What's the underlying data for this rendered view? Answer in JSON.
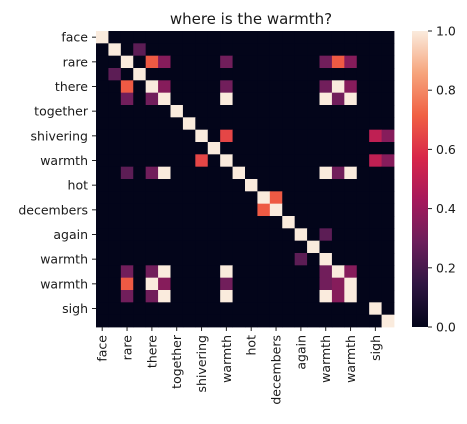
{
  "chart_data": {
    "type": "heatmap",
    "title": "where is the warmth?",
    "x_labels_shown": [
      "face",
      "rare",
      "there",
      "together",
      "shivering",
      "warmth",
      "hot",
      "decembers",
      "again",
      "warmth",
      "warmth",
      "sigh"
    ],
    "y_labels_shown": [
      "face",
      "rare",
      "there",
      "together",
      "shivering",
      "warmth",
      "hot",
      "decembers",
      "again",
      "warmth",
      "warmth",
      "sigh"
    ],
    "rows": 24,
    "cols": 24,
    "matrix": [
      [
        1,
        0,
        0,
        0,
        0,
        0,
        0,
        0,
        0,
        0,
        0,
        0,
        0,
        0,
        0,
        0,
        0,
        0,
        0,
        0,
        0,
        0,
        0,
        0
      ],
      [
        0,
        1,
        0,
        0.25,
        0,
        0,
        0,
        0,
        0,
        0,
        0,
        0,
        0,
        0,
        0,
        0,
        0,
        0,
        0,
        0,
        0,
        0,
        0,
        0
      ],
      [
        0,
        0,
        1,
        0,
        0.7,
        0.35,
        0,
        0,
        0,
        0,
        0.3,
        0,
        0,
        0,
        0,
        0,
        0,
        0,
        0.3,
        0.7,
        0.35,
        0,
        0,
        0
      ],
      [
        0,
        0.25,
        0,
        1,
        0,
        0,
        0,
        0,
        0,
        0,
        0,
        0,
        0,
        0,
        0,
        0,
        0,
        0,
        0,
        0,
        0,
        0,
        0,
        0
      ],
      [
        0,
        0,
        0.7,
        0,
        1,
        0.35,
        0,
        0,
        0,
        0,
        0.3,
        0,
        0,
        0,
        0,
        0,
        0,
        0,
        0.3,
        1,
        0.35,
        0,
        0,
        0
      ],
      [
        0,
        0,
        0.3,
        0,
        0.3,
        1,
        0,
        0,
        0,
        0,
        1,
        0,
        0,
        0,
        0,
        0,
        0,
        0,
        1,
        0.3,
        1,
        0,
        0,
        0
      ],
      [
        0,
        0,
        0,
        0,
        0,
        0,
        1,
        0,
        0,
        0,
        0,
        0,
        0,
        0,
        0,
        0,
        0,
        0,
        0,
        0,
        0,
        0,
        0,
        0
      ],
      [
        0,
        0,
        0,
        0,
        0,
        0,
        0,
        1,
        0,
        0,
        0,
        0,
        0,
        0,
        0,
        0,
        0,
        0,
        0,
        0,
        0,
        0,
        0,
        0
      ],
      [
        0,
        0,
        0,
        0,
        0,
        0,
        0,
        0,
        1,
        0,
        0.65,
        0,
        0,
        0,
        0,
        0,
        0,
        0,
        0,
        0,
        0,
        0,
        0.5,
        0.35
      ],
      [
        0,
        0,
        0,
        0,
        0,
        0,
        0,
        0,
        0,
        1,
        0,
        0,
        0,
        0,
        0,
        0,
        0,
        0,
        0,
        0,
        0,
        0,
        0,
        0
      ],
      [
        0,
        0,
        0,
        0,
        0,
        0,
        0,
        0,
        0.65,
        0,
        1,
        0,
        0,
        0,
        0,
        0,
        0,
        0,
        0,
        0,
        0,
        0,
        0.5,
        0.35
      ],
      [
        0,
        0,
        0.25,
        0,
        0.3,
        1,
        0,
        0,
        0,
        0,
        0,
        1,
        0,
        0,
        0,
        0,
        0,
        0,
        1,
        0.3,
        1,
        0,
        0,
        0
      ],
      [
        0,
        0,
        0,
        0,
        0,
        0,
        0,
        0,
        0,
        0,
        0,
        0,
        1,
        0,
        0,
        0,
        0,
        0,
        0,
        0,
        0,
        0,
        0,
        0
      ],
      [
        0,
        0,
        0,
        0,
        0,
        0,
        0,
        0,
        0,
        0,
        0,
        0,
        0,
        1,
        0.7,
        0,
        0,
        0,
        0,
        0,
        0,
        0,
        0,
        0
      ],
      [
        0,
        0,
        0,
        0,
        0,
        0,
        0,
        0,
        0,
        0,
        0,
        0,
        0,
        0.7,
        1,
        0,
        0,
        0,
        0,
        0,
        0,
        0,
        0,
        0
      ],
      [
        0,
        0,
        0,
        0,
        0,
        0,
        0,
        0,
        0,
        0,
        0,
        0,
        0,
        0,
        0,
        1,
        0,
        0,
        0,
        0,
        0,
        0,
        0,
        0
      ],
      [
        0,
        0,
        0,
        0,
        0,
        0,
        0,
        0,
        0,
        0,
        0,
        0,
        0,
        0,
        0,
        0,
        1,
        0,
        0.25,
        0,
        0,
        0,
        0,
        0
      ],
      [
        0,
        0,
        0,
        0,
        0,
        0,
        0,
        0,
        0,
        0,
        0,
        0,
        0,
        0,
        0,
        0,
        0,
        1,
        0,
        0,
        0,
        0,
        0,
        0
      ],
      [
        0,
        0,
        0,
        0,
        0,
        0,
        0,
        0,
        0,
        0,
        0,
        0,
        0,
        0,
        0,
        0,
        0.25,
        0,
        1,
        0,
        0,
        0,
        0,
        0
      ],
      [
        0,
        0,
        0.3,
        0,
        0.3,
        1,
        0,
        0,
        0,
        0,
        1,
        0,
        0,
        0,
        0,
        0,
        0,
        0,
        0.3,
        1,
        0.35,
        0,
        0,
        0
      ],
      [
        0,
        0,
        0.7,
        0,
        1,
        0.35,
        0,
        0,
        0,
        0,
        0.3,
        0,
        0,
        0,
        0,
        0,
        0,
        0,
        0.3,
        0.35,
        1,
        0,
        0,
        0
      ],
      [
        0,
        0,
        0.3,
        0,
        0.3,
        1,
        0,
        0,
        0,
        0,
        1,
        0,
        0,
        0,
        0,
        0,
        0,
        0,
        1,
        0.35,
        1,
        0,
        0,
        0
      ],
      [
        0,
        0,
        0,
        0,
        0,
        0,
        0,
        0,
        0,
        0,
        0,
        0,
        0,
        0,
        0,
        0,
        0,
        0,
        0,
        0,
        0,
        0,
        1,
        0
      ],
      [
        0,
        0,
        0,
        0,
        0,
        0,
        0,
        0,
        0,
        0,
        0,
        0,
        0,
        0,
        0,
        0,
        0,
        0,
        0,
        0,
        0,
        0,
        0,
        1
      ]
    ],
    "colorbar": {
      "min": 0.0,
      "max": 1.0,
      "ticks": [
        "0.0",
        "0.2",
        "0.4",
        "0.6",
        "0.8",
        "1.0"
      ]
    },
    "colormap": [
      "#03051a",
      "#2f1642",
      "#6b1f5b",
      "#a6195c",
      "#d8264a",
      "#f06043",
      "#f6a47c",
      "#faebdd"
    ]
  }
}
